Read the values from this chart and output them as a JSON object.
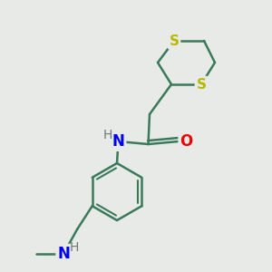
{
  "background_color": "#e8eae8",
  "atom_colors": {
    "S": "#b8b800",
    "N": "#0000ee",
    "O": "#ee0000",
    "C": "#000000",
    "H": "#707878"
  },
  "bond_color": "#3a7a5a",
  "bond_width": 1.8,
  "figsize": [
    3.0,
    3.0
  ],
  "dpi": 100,
  "xlim": [
    0,
    10
  ],
  "ylim": [
    0,
    10
  ]
}
